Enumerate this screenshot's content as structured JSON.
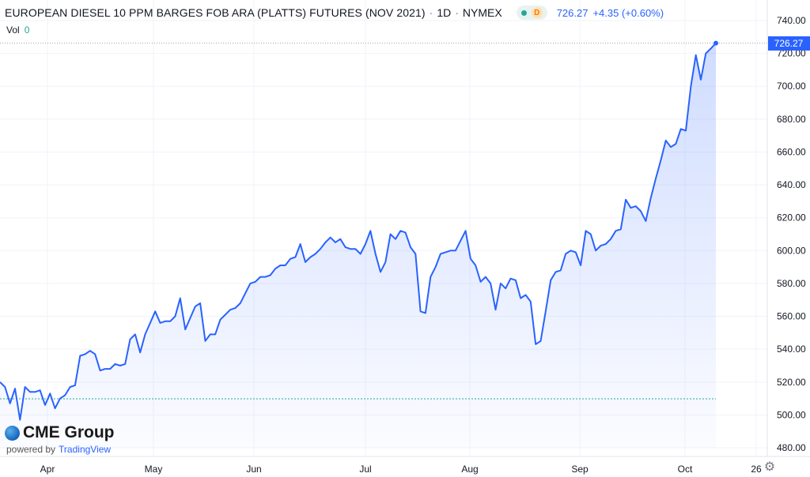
{
  "header": {
    "symbol": "EUROPEAN DIESEL 10 PPM BARGES FOB ARA (PLATTS) FUTURES (NOV 2021)",
    "interval": "1D",
    "exchange": "NYMEX",
    "badge_letter": "D",
    "last_price": "726.27",
    "change": "+4.35 (+0.60%)"
  },
  "volume": {
    "label": "Vol",
    "value": "0"
  },
  "price_tag": "726.27",
  "branding": {
    "brand": "CME Group",
    "powered_by": "powered by",
    "platform": "TradingView"
  },
  "colors": {
    "line": "#2962ff",
    "fill_top": "#2962ff",
    "baseline": "#26a69a",
    "text": "#131722"
  },
  "icons": {
    "settings": "gear-icon",
    "logo": "globe-icon"
  },
  "chart_data": {
    "type": "area",
    "title": "EUROPEAN DIESEL 10 PPM BARGES FOB ARA (PLATTS) FUTURES (NOV 2021)",
    "ylim": [
      480,
      740
    ],
    "y_ticks": [
      "740.00",
      "720.00",
      "700.00",
      "680.00",
      "660.00",
      "640.00",
      "620.00",
      "600.00",
      "580.00",
      "560.00",
      "540.00",
      "520.00",
      "500.00",
      "480.00"
    ],
    "x_tick_labels": [
      "Apr",
      "May",
      "Jun",
      "Jul",
      "Aug",
      "Sep",
      "Oct",
      "26"
    ],
    "baseline_value": 509.8,
    "last_value": 726.27,
    "grid": true,
    "series": [
      {
        "values": [
          520,
          517,
          507,
          516,
          497,
          517,
          514,
          514,
          515,
          506,
          513,
          504,
          510,
          512,
          517,
          518,
          536,
          537,
          539,
          537,
          527,
          528,
          528,
          531,
          530,
          531,
          546,
          549,
          538,
          549,
          556,
          563,
          556,
          557,
          557,
          560,
          571,
          552,
          559,
          566,
          568,
          545,
          549,
          549,
          558,
          561,
          564,
          565,
          568,
          574,
          580,
          581,
          584,
          584,
          585,
          589,
          591,
          591,
          595,
          596,
          604,
          593,
          596,
          598,
          601,
          605,
          608,
          605,
          607,
          602,
          601,
          601,
          598,
          604,
          612,
          598,
          587,
          593,
          610,
          607,
          612,
          611,
          602,
          598,
          563,
          562,
          584,
          590,
          598,
          599,
          600,
          600,
          606,
          612,
          595,
          591,
          581,
          584,
          580,
          564,
          580,
          577,
          583,
          582,
          571,
          573,
          569,
          543,
          545,
          563,
          582,
          587,
          588,
          598,
          600,
          599,
          591,
          612,
          610,
          600,
          603,
          604,
          607,
          612,
          613,
          631,
          626,
          627,
          624,
          618,
          632,
          644,
          655,
          667,
          663,
          665,
          674,
          673,
          700,
          719,
          704,
          720,
          723,
          726.27
        ]
      }
    ]
  }
}
